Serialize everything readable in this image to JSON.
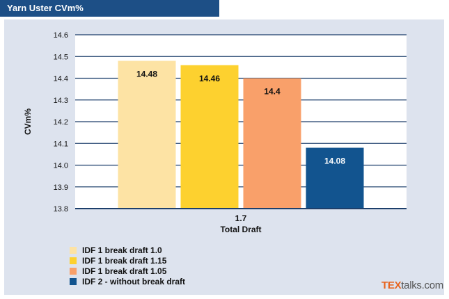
{
  "header": {
    "title": "Yarn Uster CVm%"
  },
  "brand": {
    "part1": "TEX",
    "part2": "talks.com"
  },
  "chart_data": {
    "type": "bar",
    "title": "Yarn Uster CVm%",
    "xlabel": "Total Draft",
    "ylabel": "CVm%",
    "categories": [
      "1.7"
    ],
    "ylim": [
      13.8,
      14.6
    ],
    "yticks": [
      "13.8",
      "13.9",
      "14.0",
      "14.1",
      "14.2",
      "14.3",
      "14.4",
      "14.5",
      "14.6"
    ],
    "grid": true,
    "legend_position": "bottom-left",
    "series": [
      {
        "name": "IDF 1 break draft 1.0",
        "values": [
          14.48
        ],
        "label": "14.48",
        "color": "#fde3a4",
        "label_color": "#111111"
      },
      {
        "name": "IDF 1 break draft 1.15",
        "values": [
          14.46
        ],
        "label": "14.46",
        "color": "#fdd12f",
        "label_color": "#111111"
      },
      {
        "name": "IDF 1 break draft 1.05",
        "values": [
          14.4
        ],
        "label": "14.4",
        "color": "#f9a06a",
        "label_color": "#111111"
      },
      {
        "name": "IDF 2 - without break draft",
        "values": [
          14.08
        ],
        "label": "14.08",
        "color": "#12548f",
        "label_color": "#ffffff"
      }
    ]
  }
}
